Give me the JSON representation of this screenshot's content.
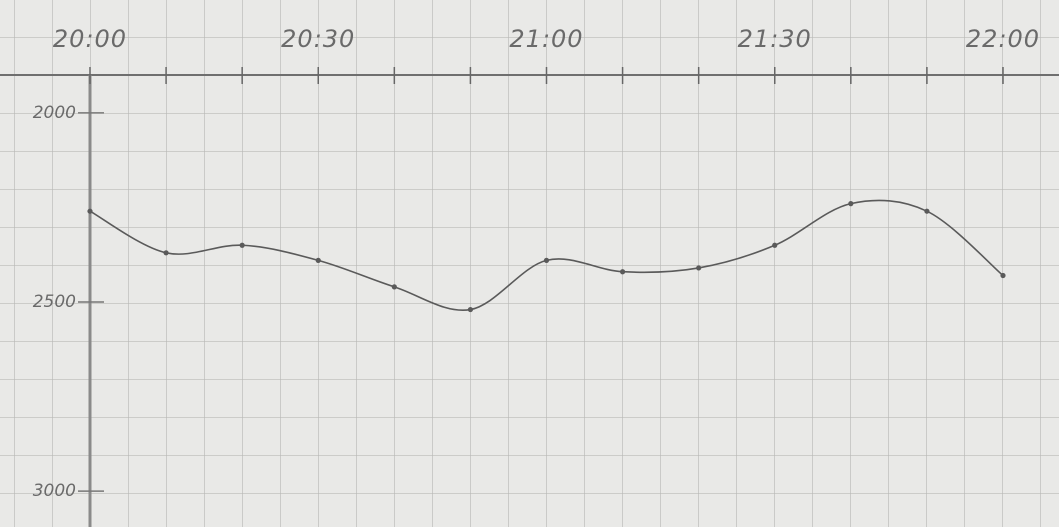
{
  "chart_data": {
    "type": "line",
    "categories": [
      "20:00",
      null,
      null,
      "20:30",
      null,
      null,
      "21:00",
      null,
      null,
      "21:30",
      null,
      null,
      "22:00"
    ],
    "series": [
      {
        "color": "#5a5a5a",
        "values": [
          2260,
          2370,
          2350,
          2390,
          2460,
          2520,
          2390,
          2420,
          2410,
          2350,
          2240,
          2260,
          2430
        ]
      }
    ],
    "ylim": [
      1900,
      3100
    ],
    "y_inverted": true,
    "yticks": [
      2000,
      2500,
      3000
    ]
  }
}
